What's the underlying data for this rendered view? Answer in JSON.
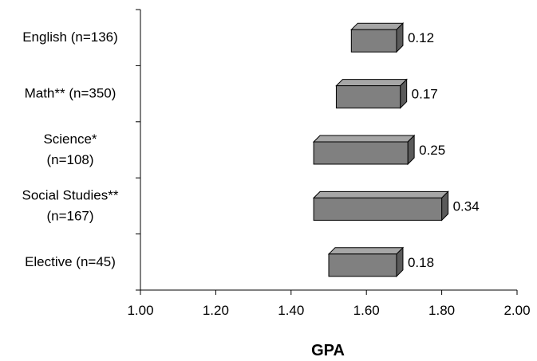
{
  "chart_data": {
    "type": "bar",
    "subtype": "floating-horizontal-range",
    "categories": [
      [
        "English (n=136)"
      ],
      [
        "Math** (n=350)"
      ],
      [
        "Science*",
        "(n=108)"
      ],
      [
        "Social Studies**",
        "(n=167)"
      ],
      [
        "Elective (n=45)"
      ]
    ],
    "ranges": [
      {
        "start": 1.56,
        "end": 1.68
      },
      {
        "start": 1.52,
        "end": 1.69
      },
      {
        "start": 1.46,
        "end": 1.71
      },
      {
        "start": 1.46,
        "end": 1.8
      },
      {
        "start": 1.5,
        "end": 1.68
      }
    ],
    "data_labels": [
      "0.12",
      "0.17",
      "0.25",
      "0.34",
      "0.18"
    ],
    "x_ticks": [
      "1.00",
      "1.20",
      "1.40",
      "1.60",
      "1.80",
      "2.00"
    ],
    "xlim": [
      1.0,
      2.0
    ],
    "xlabel": "GPA",
    "ylabel": "",
    "title": "",
    "grid": false,
    "legend": "none",
    "colors": {
      "bar_front": "#808080",
      "bar_top": "#a6a6a6",
      "bar_side": "#5a5a5a",
      "outline": "#000000",
      "axis": "#000000"
    }
  }
}
